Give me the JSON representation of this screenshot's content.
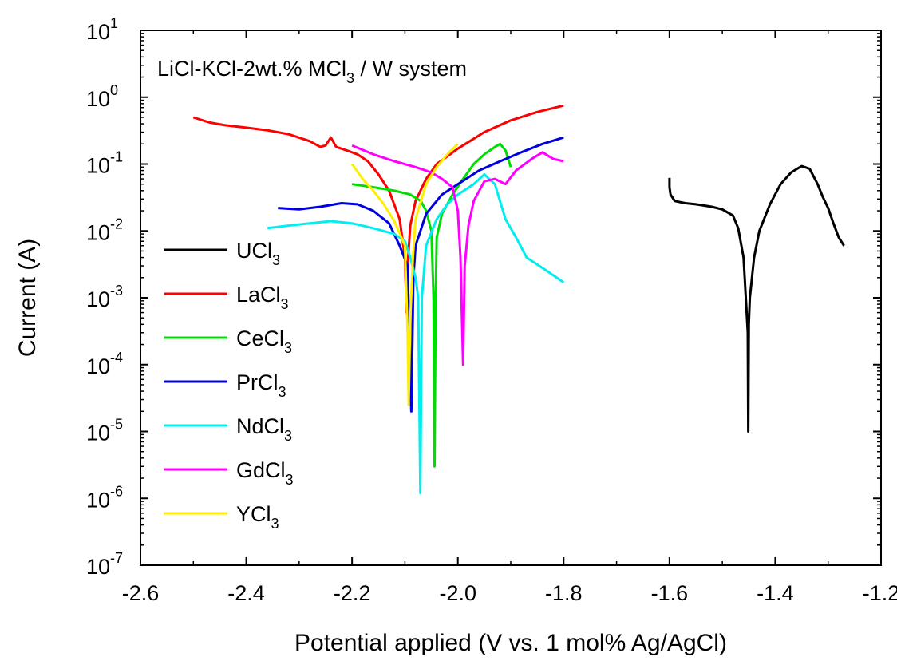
{
  "chart_data": {
    "type": "line",
    "annotation": {
      "main": "LiCl-KCl-2wt.% MCl",
      "sub": "3",
      "tail": " / W system"
    },
    "xlabel": "Potential applied (V vs. 1 mol% Ag/AgCl)",
    "ylabel": "Current (A)",
    "xlim": [
      -2.6,
      -1.2
    ],
    "ylim": [
      1e-07,
      10
    ],
    "yscale": "log",
    "x_ticks": [
      "-2.6",
      "-2.4",
      "-2.2",
      "-2.0",
      "-1.8",
      "-1.6",
      "-1.4",
      "-1.2"
    ],
    "x_tick_values": [
      -2.6,
      -2.4,
      -2.2,
      -2.0,
      -1.8,
      -1.6,
      -1.4,
      -1.2
    ],
    "y_ticks": [
      {
        "base": "10",
        "exp": "1",
        "value": 10
      },
      {
        "base": "10",
        "exp": "0",
        "value": 1
      },
      {
        "base": "10",
        "exp": "-1",
        "value": 0.1
      },
      {
        "base": "10",
        "exp": "-2",
        "value": 0.01
      },
      {
        "base": "10",
        "exp": "-3",
        "value": 0.001
      },
      {
        "base": "10",
        "exp": "-4",
        "value": 0.0001
      },
      {
        "base": "10",
        "exp": "-5",
        "value": 1e-05
      },
      {
        "base": "10",
        "exp": "-6",
        "value": 1e-06
      },
      {
        "base": "10",
        "exp": "-7",
        "value": 1e-07
      }
    ],
    "legend_position": "left",
    "series": [
      {
        "name": "UCl",
        "sub": "3",
        "color": "#000000",
        "points": [
          [
            -1.6,
            0.062
          ],
          [
            -1.6,
            0.045
          ],
          [
            -1.598,
            0.035
          ],
          [
            -1.59,
            0.028
          ],
          [
            -1.57,
            0.026
          ],
          [
            -1.55,
            0.025
          ],
          [
            -1.52,
            0.023
          ],
          [
            -1.5,
            0.021
          ],
          [
            -1.48,
            0.017
          ],
          [
            -1.47,
            0.011
          ],
          [
            -1.46,
            0.004
          ],
          [
            -1.455,
            0.0008
          ],
          [
            -1.452,
            0.0003
          ],
          [
            -1.451,
            1e-05
          ],
          [
            -1.45,
            0.0004
          ],
          [
            -1.448,
            0.001
          ],
          [
            -1.44,
            0.004
          ],
          [
            -1.43,
            0.01
          ],
          [
            -1.41,
            0.025
          ],
          [
            -1.39,
            0.05
          ],
          [
            -1.37,
            0.075
          ],
          [
            -1.35,
            0.093
          ],
          [
            -1.335,
            0.085
          ],
          [
            -1.32,
            0.05
          ],
          [
            -1.31,
            0.032
          ],
          [
            -1.3,
            0.022
          ],
          [
            -1.29,
            0.013
          ],
          [
            -1.28,
            0.008
          ],
          [
            -1.27,
            0.006
          ]
        ]
      },
      {
        "name": "LaCl",
        "sub": "3",
        "color": "#ff0000",
        "points": [
          [
            -2.5,
            0.5
          ],
          [
            -2.47,
            0.42
          ],
          [
            -2.44,
            0.38
          ],
          [
            -2.4,
            0.35
          ],
          [
            -2.36,
            0.32
          ],
          [
            -2.32,
            0.28
          ],
          [
            -2.28,
            0.22
          ],
          [
            -2.26,
            0.18
          ],
          [
            -2.25,
            0.19
          ],
          [
            -2.24,
            0.25
          ],
          [
            -2.23,
            0.18
          ],
          [
            -2.21,
            0.16
          ],
          [
            -2.19,
            0.14
          ],
          [
            -2.17,
            0.11
          ],
          [
            -2.15,
            0.07
          ],
          [
            -2.13,
            0.04
          ],
          [
            -2.11,
            0.015
          ],
          [
            -2.1,
            0.004
          ],
          [
            -2.097,
            0.0006
          ],
          [
            -2.094,
            0.004
          ],
          [
            -2.09,
            0.012
          ],
          [
            -2.08,
            0.028
          ],
          [
            -2.06,
            0.06
          ],
          [
            -2.04,
            0.1
          ],
          [
            -2.0,
            0.17
          ],
          [
            -1.95,
            0.3
          ],
          [
            -1.9,
            0.45
          ],
          [
            -1.85,
            0.6
          ],
          [
            -1.8,
            0.75
          ]
        ]
      },
      {
        "name": "CeCl",
        "sub": "3",
        "color": "#00dd00",
        "points": [
          [
            -2.2,
            0.05
          ],
          [
            -2.16,
            0.045
          ],
          [
            -2.12,
            0.04
          ],
          [
            -2.09,
            0.035
          ],
          [
            -2.07,
            0.028
          ],
          [
            -2.06,
            0.02
          ],
          [
            -2.05,
            0.01
          ],
          [
            -2.046,
            0.001
          ],
          [
            -2.044,
            3e-06
          ],
          [
            -2.042,
            0.001
          ],
          [
            -2.04,
            0.008
          ],
          [
            -2.03,
            0.018
          ],
          [
            -2.01,
            0.035
          ],
          [
            -1.99,
            0.06
          ],
          [
            -1.97,
            0.1
          ],
          [
            -1.95,
            0.14
          ],
          [
            -1.93,
            0.18
          ],
          [
            -1.92,
            0.2
          ],
          [
            -1.91,
            0.16
          ],
          [
            -1.9,
            0.09
          ]
        ]
      },
      {
        "name": "PrCl",
        "sub": "3",
        "color": "#0000dd",
        "points": [
          [
            -2.34,
            0.022
          ],
          [
            -2.3,
            0.021
          ],
          [
            -2.26,
            0.023
          ],
          [
            -2.22,
            0.026
          ],
          [
            -2.19,
            0.025
          ],
          [
            -2.16,
            0.02
          ],
          [
            -2.13,
            0.013
          ],
          [
            -2.11,
            0.006
          ],
          [
            -2.095,
            0.003
          ],
          [
            -2.088,
            2e-05
          ],
          [
            -2.084,
            0.002
          ],
          [
            -2.08,
            0.006
          ],
          [
            -2.06,
            0.018
          ],
          [
            -2.03,
            0.035
          ],
          [
            -2.0,
            0.05
          ],
          [
            -1.96,
            0.08
          ],
          [
            -1.92,
            0.11
          ],
          [
            -1.88,
            0.15
          ],
          [
            -1.84,
            0.2
          ],
          [
            -1.8,
            0.25
          ]
        ]
      },
      {
        "name": "NdCl",
        "sub": "3",
        "color": "#00eeee",
        "points": [
          [
            -2.36,
            0.011
          ],
          [
            -2.32,
            0.012
          ],
          [
            -2.28,
            0.013
          ],
          [
            -2.24,
            0.014
          ],
          [
            -2.2,
            0.013
          ],
          [
            -2.16,
            0.011
          ],
          [
            -2.12,
            0.009
          ],
          [
            -2.1,
            0.007
          ],
          [
            -2.09,
            0.004
          ],
          [
            -2.08,
            0.002
          ],
          [
            -2.075,
            0.001
          ],
          [
            -2.071,
            1.2e-06
          ],
          [
            -2.068,
            0.001
          ],
          [
            -2.06,
            0.006
          ],
          [
            -2.04,
            0.015
          ],
          [
            -2.02,
            0.025
          ],
          [
            -2.0,
            0.035
          ],
          [
            -1.97,
            0.05
          ],
          [
            -1.95,
            0.07
          ],
          [
            -1.93,
            0.05
          ],
          [
            -1.91,
            0.015
          ],
          [
            -1.89,
            0.008
          ],
          [
            -1.87,
            0.004
          ],
          [
            -1.84,
            0.0028
          ],
          [
            -1.8,
            0.0017
          ]
        ]
      },
      {
        "name": "GdCl",
        "sub": "3",
        "color": "#ff00ff",
        "points": [
          [
            -2.2,
            0.19
          ],
          [
            -2.16,
            0.14
          ],
          [
            -2.12,
            0.11
          ],
          [
            -2.08,
            0.09
          ],
          [
            -2.05,
            0.075
          ],
          [
            -2.03,
            0.06
          ],
          [
            -2.01,
            0.045
          ],
          [
            -2.0,
            0.02
          ],
          [
            -1.995,
            0.004
          ],
          [
            -1.99,
            0.0001
          ],
          [
            -1.987,
            0.003
          ],
          [
            -1.98,
            0.012
          ],
          [
            -1.97,
            0.028
          ],
          [
            -1.95,
            0.055
          ],
          [
            -1.93,
            0.06
          ],
          [
            -1.91,
            0.05
          ],
          [
            -1.89,
            0.08
          ],
          [
            -1.86,
            0.12
          ],
          [
            -1.84,
            0.15
          ],
          [
            -1.82,
            0.12
          ],
          [
            -1.8,
            0.11
          ]
        ]
      },
      {
        "name": "YCl",
        "sub": "3",
        "color": "#ffee00",
        "points": [
          [
            -2.2,
            0.1
          ],
          [
            -2.18,
            0.06
          ],
          [
            -2.16,
            0.04
          ],
          [
            -2.14,
            0.025
          ],
          [
            -2.12,
            0.014
          ],
          [
            -2.1,
            0.006
          ],
          [
            -2.095,
            0.0003
          ],
          [
            -2.093,
            2.5e-05
          ],
          [
            -2.09,
            0.0005
          ],
          [
            -2.085,
            0.004
          ],
          [
            -2.08,
            0.015
          ],
          [
            -2.06,
            0.05
          ],
          [
            -2.04,
            0.09
          ],
          [
            -2.02,
            0.14
          ],
          [
            -2.0,
            0.2
          ]
        ]
      }
    ]
  }
}
